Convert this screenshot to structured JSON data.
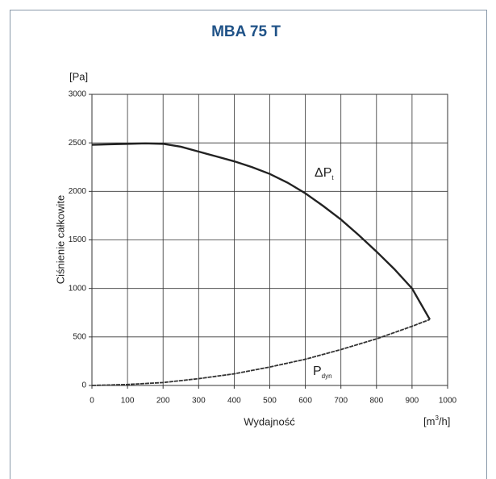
{
  "chart_data": {
    "type": "line",
    "title": "MBA 75 T",
    "y_unit": "[Pa]",
    "y_label": "Ciśnienie całkowite",
    "x_label": "Wydajność",
    "x_unit": {
      "main": "[m",
      "sup": "3",
      "rest": "/h]"
    },
    "xlim": [
      0,
      1000
    ],
    "ylim": [
      0,
      3000
    ],
    "xticks": [
      0,
      100,
      200,
      300,
      400,
      500,
      600,
      700,
      800,
      900,
      1000
    ],
    "yticks": [
      0,
      500,
      1000,
      1500,
      2000,
      2500,
      3000
    ],
    "grid": true,
    "series": [
      {
        "label": {
          "main": "ΔP",
          "sub": "t"
        },
        "color": "#222222",
        "x": [
          0,
          50,
          100,
          150,
          200,
          250,
          300,
          350,
          400,
          450,
          500,
          550,
          600,
          650,
          700,
          750,
          800,
          850,
          900,
          950
        ],
        "values": [
          2480,
          2485,
          2490,
          2495,
          2490,
          2460,
          2410,
          2360,
          2310,
          2250,
          2180,
          2090,
          1980,
          1850,
          1710,
          1550,
          1380,
          1200,
          1000,
          680
        ]
      },
      {
        "label": {
          "main": "P",
          "sub": "dyn"
        },
        "color": "#333333",
        "x": [
          0,
          100,
          200,
          300,
          400,
          500,
          600,
          700,
          800,
          900,
          950
        ],
        "values": [
          0,
          10,
          30,
          70,
          120,
          190,
          270,
          370,
          480,
          610,
          680
        ]
      }
    ]
  }
}
